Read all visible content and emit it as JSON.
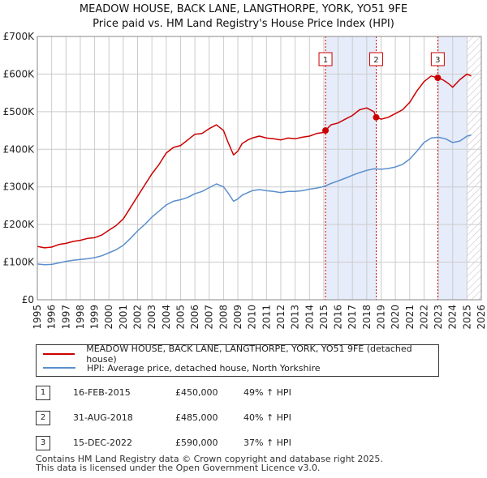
{
  "title": {
    "line1": "MEADOW HOUSE, BACK LANE, LANGTHORPE, YORK, YO51 9FE",
    "line2": "Price paid vs. HM Land Registry's House Price Index (HPI)"
  },
  "legend": {
    "property": "MEADOW HOUSE, BACK LANE, LANGTHORPE, YORK, YO51 9FE (detached house)",
    "hpi": "HPI: Average price, detached house, North Yorkshire"
  },
  "sales": [
    {
      "num": "1",
      "date": "16-FEB-2015",
      "price": "£450,000",
      "pct": "49% ↑ HPI"
    },
    {
      "num": "2",
      "date": "31-AUG-2018",
      "price": "£485,000",
      "pct": "40% ↑ HPI"
    },
    {
      "num": "3",
      "date": "15-DEC-2022",
      "price": "£590,000",
      "pct": "37% ↑ HPI"
    }
  ],
  "footer": {
    "line1": "Contains HM Land Registry data © Crown copyright and database right 2025.",
    "line2": "This data is licensed under the Open Government Licence v3.0."
  },
  "colors": {
    "property": "#cc0000",
    "hpi": "#5b8fcc",
    "shade": "#e6ecfa",
    "hatch": "#bbbbbb",
    "grid": "#cccccc"
  },
  "chart_data": {
    "type": "line",
    "x_range": [
      1995,
      2026
    ],
    "ylim": [
      0,
      700000
    ],
    "y_ticks": [
      {
        "value": 0,
        "label": "£0"
      },
      {
        "value": 100000,
        "label": "£100K"
      },
      {
        "value": 200000,
        "label": "£200K"
      },
      {
        "value": 300000,
        "label": "£300K"
      },
      {
        "value": 400000,
        "label": "£400K"
      },
      {
        "value": 500000,
        "label": "£500K"
      },
      {
        "value": 600000,
        "label": "£600K"
      },
      {
        "value": 700000,
        "label": "£700K"
      }
    ],
    "x_ticks": [
      "1995",
      "1996",
      "1997",
      "1998",
      "1999",
      "2000",
      "2001",
      "2002",
      "2003",
      "2004",
      "2005",
      "2006",
      "2007",
      "2008",
      "2009",
      "2010",
      "2011",
      "2012",
      "2013",
      "2014",
      "2015",
      "2016",
      "2017",
      "2018",
      "2019",
      "2020",
      "2021",
      "2022",
      "2023",
      "2024",
      "2025",
      "2026"
    ],
    "sale_markers": [
      {
        "label": "1",
        "x": 2015.12,
        "y": 450000
      },
      {
        "label": "2",
        "x": 2018.66,
        "y": 485000
      },
      {
        "label": "3",
        "x": 2022.96,
        "y": 590000
      }
    ],
    "shaded_ranges": [
      [
        2015.12,
        2018.66
      ],
      [
        2022.96,
        2025.0
      ]
    ],
    "hatched_from": 2025.0,
    "series": [
      {
        "name": "MEADOW HOUSE, BACK LANE, LANGTHORPE, YORK, YO51 9FE (detached house)",
        "x": [
          1995.0,
          1995.5,
          1996.0,
          1996.5,
          1997.0,
          1997.5,
          1998.0,
          1998.5,
          1999.0,
          1999.5,
          2000.0,
          2000.5,
          2001.0,
          2001.5,
          2002.0,
          2002.5,
          2003.0,
          2003.5,
          2004.0,
          2004.5,
          2005.0,
          2005.5,
          2006.0,
          2006.5,
          2007.0,
          2007.5,
          2008.0,
          2008.3,
          2008.7,
          2009.0,
          2009.3,
          2009.7,
          2010.0,
          2010.5,
          2011.0,
          2011.5,
          2012.0,
          2012.5,
          2013.0,
          2013.5,
          2014.0,
          2014.5,
          2015.0,
          2015.12,
          2015.5,
          2016.0,
          2016.5,
          2017.0,
          2017.5,
          2018.0,
          2018.5,
          2018.66,
          2019.0,
          2019.5,
          2020.0,
          2020.5,
          2021.0,
          2021.5,
          2022.0,
          2022.5,
          2022.96,
          2023.3,
          2023.7,
          2024.0,
          2024.5,
          2025.0,
          2025.3
        ],
        "values": [
          142000,
          138000,
          140000,
          147000,
          150000,
          155000,
          158000,
          163000,
          165000,
          172000,
          185000,
          197000,
          215000,
          245000,
          275000,
          305000,
          335000,
          360000,
          390000,
          405000,
          410000,
          425000,
          440000,
          442000,
          455000,
          465000,
          450000,
          420000,
          385000,
          395000,
          415000,
          425000,
          430000,
          435000,
          430000,
          428000,
          425000,
          430000,
          428000,
          432000,
          435000,
          442000,
          445000,
          450000,
          465000,
          470000,
          480000,
          490000,
          505000,
          510000,
          500000,
          485000,
          480000,
          485000,
          495000,
          505000,
          525000,
          555000,
          580000,
          595000,
          590000,
          585000,
          575000,
          565000,
          585000,
          600000,
          595000
        ]
      },
      {
        "name": "HPI: Average price, detached house, North Yorkshire",
        "x": [
          1995.0,
          1995.5,
          1996.0,
          1996.5,
          1997.0,
          1997.5,
          1998.0,
          1998.5,
          1999.0,
          1999.5,
          2000.0,
          2000.5,
          2001.0,
          2001.5,
          2002.0,
          2002.5,
          2003.0,
          2003.5,
          2004.0,
          2004.5,
          2005.0,
          2005.5,
          2006.0,
          2006.5,
          2007.0,
          2007.5,
          2008.0,
          2008.3,
          2008.7,
          2009.0,
          2009.3,
          2009.7,
          2010.0,
          2010.5,
          2011.0,
          2011.5,
          2012.0,
          2012.5,
          2013.0,
          2013.5,
          2014.0,
          2014.5,
          2015.0,
          2015.5,
          2016.0,
          2016.5,
          2017.0,
          2017.5,
          2018.0,
          2018.5,
          2019.0,
          2019.5,
          2020.0,
          2020.5,
          2021.0,
          2021.5,
          2022.0,
          2022.5,
          2023.0,
          2023.5,
          2024.0,
          2024.5,
          2025.0,
          2025.3
        ],
        "values": [
          95000,
          93000,
          94000,
          98000,
          102000,
          105000,
          107000,
          109000,
          112000,
          117000,
          125000,
          133000,
          145000,
          163000,
          183000,
          200000,
          220000,
          236000,
          252000,
          262000,
          266000,
          272000,
          282000,
          288000,
          298000,
          308000,
          300000,
          285000,
          262000,
          268000,
          278000,
          285000,
          290000,
          293000,
          290000,
          288000,
          285000,
          288000,
          288000,
          290000,
          294000,
          297000,
          301000,
          309000,
          316000,
          323000,
          331000,
          338000,
          344000,
          348000,
          347000,
          349000,
          353000,
          360000,
          374000,
          395000,
          418000,
          430000,
          432000,
          428000,
          418000,
          422000,
          435000,
          438000
        ]
      }
    ]
  }
}
